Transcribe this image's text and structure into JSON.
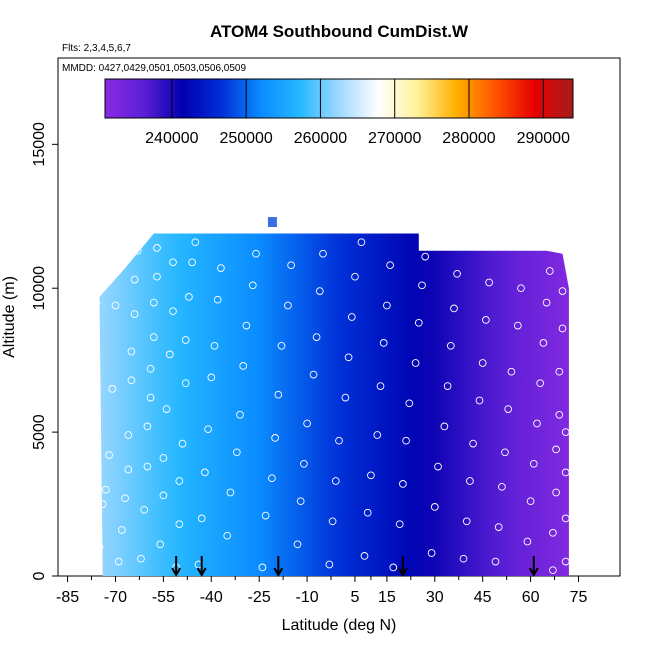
{
  "chart_data": {
    "type": "heatmap",
    "title": "ATOM4 Southbound CumDist.W",
    "flights_note": "Flts: 2,3,4,5,6,7",
    "dates_note": "MMDD: 0427,0429,0501,0503,0506,0509",
    "xlabel": "Latitude (deg N)",
    "ylabel": "Altitude (m)",
    "xlim": [
      -88,
      88
    ],
    "ylim": [
      0,
      18000
    ],
    "x_ticks": [
      -85,
      -70,
      -55,
      -40,
      -25,
      -10,
      5,
      15,
      30,
      45,
      60,
      75
    ],
    "y_ticks": [
      0,
      5000,
      10000,
      15000
    ],
    "colorbar": {
      "min": 231000,
      "max": 294000,
      "ticks": [
        240000,
        250000,
        260000,
        270000,
        280000,
        290000
      ],
      "colors": [
        "#8a2be2",
        "#5b1fd6",
        "#0000b0",
        "#0030d8",
        "#0a8cff",
        "#26b8ff",
        "#9fd8ff",
        "#ffffff",
        "#fff29a",
        "#ffb000",
        "#ff5500",
        "#e60000",
        "#a51c1c"
      ]
    },
    "field": {
      "lat_start": -74,
      "lat_end": 72,
      "value_at_lat_start": 262000,
      "value_at_lat_end": 232000,
      "top_edge": [
        [
          -75,
          9700
        ],
        [
          -67,
          10700
        ],
        [
          -58,
          11900
        ],
        [
          -40,
          11900
        ],
        [
          -25,
          11900
        ],
        [
          -10,
          11900
        ],
        [
          5,
          11900
        ],
        [
          20,
          11900
        ],
        [
          25,
          11900
        ],
        [
          25,
          11300
        ],
        [
          45,
          11300
        ],
        [
          65,
          11300
        ],
        [
          70,
          11200
        ],
        [
          72,
          10000
        ]
      ],
      "isolated_cell": {
        "lat": -21,
        "alt": 12300
      }
    },
    "sounding_lats": [
      -51,
      -43,
      -19,
      20,
      61
    ],
    "observations": [
      [
        -81,
        300
      ],
      [
        -80,
        3200
      ],
      [
        -79,
        4200
      ],
      [
        -78,
        5800
      ],
      [
        -77,
        8900
      ],
      [
        -76,
        9500
      ],
      [
        -75,
        1000
      ],
      [
        -74,
        2500
      ],
      [
        -73,
        3000
      ],
      [
        -72,
        4200
      ],
      [
        -71,
        6500
      ],
      [
        -70,
        9400
      ],
      [
        -69,
        500
      ],
      [
        -68,
        1600
      ],
      [
        -67,
        2700
      ],
      [
        -66,
        3700
      ],
      [
        -66,
        4900
      ],
      [
        -65,
        6800
      ],
      [
        -65,
        7800
      ],
      [
        -64,
        9100
      ],
      [
        -64,
        10300
      ],
      [
        -63,
        11300
      ],
      [
        -62,
        600
      ],
      [
        -61,
        2300
      ],
      [
        -60,
        3800
      ],
      [
        -60,
        5200
      ],
      [
        -59,
        6200
      ],
      [
        -59,
        7200
      ],
      [
        -58,
        8300
      ],
      [
        -58,
        9500
      ],
      [
        -57,
        10400
      ],
      [
        -57,
        11400
      ],
      [
        -56,
        1100
      ],
      [
        -55,
        2800
      ],
      [
        -55,
        4100
      ],
      [
        -54,
        5800
      ],
      [
        -53,
        7700
      ],
      [
        -52,
        9200
      ],
      [
        -52,
        10900
      ],
      [
        -51,
        300
      ],
      [
        -50,
        1800
      ],
      [
        -50,
        3300
      ],
      [
        -49,
        4600
      ],
      [
        -48,
        6700
      ],
      [
        -48,
        8200
      ],
      [
        -47,
        9700
      ],
      [
        -46,
        10900
      ],
      [
        -45,
        11600
      ],
      [
        -44,
        400
      ],
      [
        -43,
        2000
      ],
      [
        -42,
        3600
      ],
      [
        -41,
        5100
      ],
      [
        -40,
        6900
      ],
      [
        -39,
        8000
      ],
      [
        -38,
        9600
      ],
      [
        -37,
        10700
      ],
      [
        -35,
        1400
      ],
      [
        -34,
        2900
      ],
      [
        -32,
        4300
      ],
      [
        -31,
        5600
      ],
      [
        -30,
        7300
      ],
      [
        -29,
        8700
      ],
      [
        -27,
        10100
      ],
      [
        -26,
        11200
      ],
      [
        -24,
        300
      ],
      [
        -23,
        2100
      ],
      [
        -21,
        3400
      ],
      [
        -20,
        4800
      ],
      [
        -19,
        6300
      ],
      [
        -18,
        8000
      ],
      [
        -16,
        9400
      ],
      [
        -15,
        10800
      ],
      [
        -13,
        1100
      ],
      [
        -12,
        2600
      ],
      [
        -11,
        3900
      ],
      [
        -10,
        5300
      ],
      [
        -8,
        7000
      ],
      [
        -7,
        8300
      ],
      [
        -6,
        9900
      ],
      [
        -5,
        11200
      ],
      [
        -3,
        400
      ],
      [
        -2,
        1900
      ],
      [
        -1,
        3300
      ],
      [
        0,
        4700
      ],
      [
        2,
        6200
      ],
      [
        3,
        7600
      ],
      [
        4,
        9000
      ],
      [
        5,
        10400
      ],
      [
        7,
        11600
      ],
      [
        8,
        700
      ],
      [
        9,
        2200
      ],
      [
        10,
        3500
      ],
      [
        12,
        4900
      ],
      [
        13,
        6600
      ],
      [
        14,
        8100
      ],
      [
        15,
        9400
      ],
      [
        16,
        10800
      ],
      [
        17,
        300
      ],
      [
        19,
        1800
      ],
      [
        20,
        3200
      ],
      [
        21,
        4700
      ],
      [
        22,
        6000
      ],
      [
        24,
        7400
      ],
      [
        25,
        8800
      ],
      [
        26,
        10100
      ],
      [
        27,
        11100
      ],
      [
        29,
        800
      ],
      [
        30,
        2400
      ],
      [
        31,
        3800
      ],
      [
        33,
        5200
      ],
      [
        34,
        6600
      ],
      [
        35,
        8000
      ],
      [
        36,
        9300
      ],
      [
        37,
        10500
      ],
      [
        39,
        600
      ],
      [
        40,
        1900
      ],
      [
        41,
        3300
      ],
      [
        42,
        4600
      ],
      [
        44,
        6100
      ],
      [
        45,
        7400
      ],
      [
        46,
        8900
      ],
      [
        47,
        10200
      ],
      [
        49,
        500
      ],
      [
        50,
        1700
      ],
      [
        51,
        3100
      ],
      [
        52,
        4300
      ],
      [
        53,
        5800
      ],
      [
        54,
        7100
      ],
      [
        56,
        8700
      ],
      [
        57,
        10000
      ],
      [
        59,
        1200
      ],
      [
        60,
        2600
      ],
      [
        61,
        3900
      ],
      [
        62,
        5300
      ],
      [
        63,
        6700
      ],
      [
        64,
        8100
      ],
      [
        65,
        9500
      ],
      [
        66,
        10600
      ],
      [
        67,
        200
      ],
      [
        67,
        1500
      ],
      [
        68,
        2900
      ],
      [
        68,
        4400
      ],
      [
        69,
        5600
      ],
      [
        69,
        7100
      ],
      [
        70,
        8600
      ],
      [
        70,
        9900
      ],
      [
        71,
        500
      ],
      [
        71,
        2000
      ],
      [
        71,
        3600
      ],
      [
        71,
        5000
      ]
    ]
  }
}
